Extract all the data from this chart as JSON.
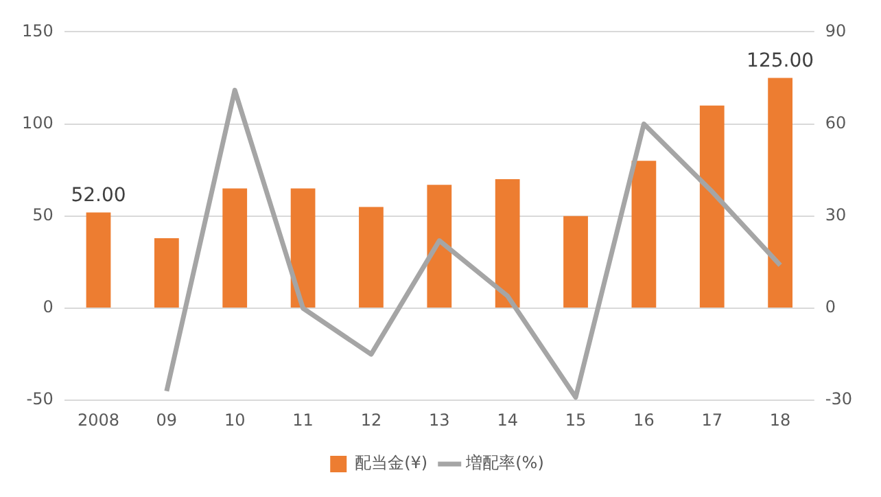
{
  "chart_data": {
    "type": "bar",
    "categories": [
      "2008",
      "09",
      "10",
      "11",
      "12",
      "13",
      "14",
      "15",
      "16",
      "17",
      "18"
    ],
    "series": [
      {
        "name": "配当金(¥)",
        "color": "#ed7d31",
        "values": [
          52,
          38,
          65,
          65,
          55,
          67,
          70,
          50,
          80,
          110,
          125
        ],
        "value_labels": [
          "52.00",
          null,
          null,
          null,
          null,
          null,
          null,
          null,
          null,
          null,
          "125.00"
        ]
      },
      {
        "name": "増配率(%)",
        "type": "line",
        "axis": "y2",
        "color": "#a5a5a5",
        "marker": "none",
        "values": [
          null,
          -27,
          71,
          0,
          -15,
          22,
          4,
          -29,
          60,
          38,
          14
        ]
      }
    ],
    "ylim": [
      -50,
      150
    ],
    "yticks": [
      -50,
      0,
      50,
      100,
      150
    ],
    "y2lim": [
      -30,
      90
    ],
    "y2ticks": [
      -30,
      0,
      30,
      60,
      90
    ],
    "grid": "y",
    "legend": "bottom"
  }
}
